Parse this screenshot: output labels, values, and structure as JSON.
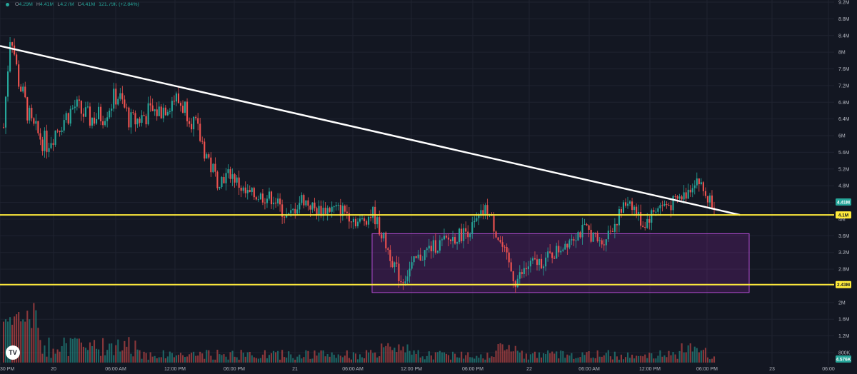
{
  "legend": {
    "open_label": "O",
    "open": "4.29M",
    "high_label": "H",
    "high": "4.41M",
    "low_label": "L",
    "low": "4.27M",
    "close_label": "C",
    "close": "4.41M",
    "change": "121.79K (+2.84%)"
  },
  "colors": {
    "background": "#131722",
    "up": "#26a69a",
    "down": "#ef5350",
    "trendline": "#ffffff",
    "level": "#ffeb3b",
    "zone": "#9c27b0",
    "grid": "#1f2330",
    "axis_text": "#b2b5be"
  },
  "logo_icon": "tradingview-logo-icon",
  "logo_text": "TV",
  "chart_data": {
    "type": "candlestick",
    "y_axis": {
      "ticks": [
        "9.2M",
        "8.8M",
        "8.4M",
        "8M",
        "7.6M",
        "7.2M",
        "6.8M",
        "6.4M",
        "6M",
        "5.6M",
        "5.2M",
        "4.8M",
        "4.4M",
        "4M",
        "3.6M",
        "3.2M",
        "2.8M",
        "2.4M",
        "2M",
        "1.6M",
        "1.2M",
        "800K"
      ],
      "tick_values": [
        9.2,
        8.8,
        8.4,
        8.0,
        7.6,
        7.2,
        6.8,
        6.4,
        6.0,
        5.6,
        5.2,
        4.8,
        4.4,
        4.0,
        3.6,
        3.2,
        2.8,
        2.4,
        2.0,
        1.6,
        1.2,
        0.8
      ],
      "range": [
        0.8,
        9.2
      ]
    },
    "x_axis": {
      "labels": [
        "30 PM",
        "20",
        "06:00 AM",
        "12:00 PM",
        "06:00 PM",
        "21",
        "06:00 AM",
        "12:00 PM",
        "06:00 PM",
        "22",
        "06:00 AM",
        "12:00 PM",
        "06:00 PM",
        "23",
        "06:00"
      ]
    },
    "price_tags": [
      {
        "label": "4.41M",
        "value": 4.41,
        "kind": "last"
      },
      {
        "label": "4.1M",
        "value": 4.1,
        "kind": "level"
      },
      {
        "label": "2.43M",
        "value": 2.43,
        "kind": "level"
      },
      {
        "label": "4.576K",
        "value": 0,
        "kind": "volume"
      }
    ],
    "horizontal_levels": [
      4.1,
      2.43
    ],
    "zone": {
      "from_label": "21 09:00 AM",
      "to_label": "23 00:00 AM",
      "top": 3.65,
      "bottom": 2.24
    },
    "trendline": {
      "start": {
        "t": 0,
        "price": 8.15
      },
      "end": {
        "t": 1.0,
        "price": 4.1
      }
    },
    "series_anchor_closes": [
      [
        0.0,
        6.2
      ],
      [
        0.01,
        8.6
      ],
      [
        0.02,
        7.4
      ],
      [
        0.04,
        6.2
      ],
      [
        0.06,
        5.8
      ],
      [
        0.08,
        6.3
      ],
      [
        0.1,
        6.7
      ],
      [
        0.12,
        6.4
      ],
      [
        0.14,
        6.5
      ],
      [
        0.16,
        7.0
      ],
      [
        0.18,
        6.3
      ],
      [
        0.2,
        6.5
      ],
      [
        0.22,
        6.6
      ],
      [
        0.24,
        6.9
      ],
      [
        0.26,
        6.6
      ],
      [
        0.28,
        5.8
      ],
      [
        0.3,
        4.9
      ],
      [
        0.32,
        5.1
      ],
      [
        0.34,
        4.6
      ],
      [
        0.36,
        4.55
      ],
      [
        0.38,
        4.5
      ],
      [
        0.4,
        4.0
      ],
      [
        0.42,
        4.5
      ],
      [
        0.44,
        4.2
      ],
      [
        0.46,
        4.25
      ],
      [
        0.48,
        4.2
      ],
      [
        0.5,
        3.9
      ],
      [
        0.52,
        4.15
      ],
      [
        0.54,
        3.3
      ],
      [
        0.56,
        2.5
      ],
      [
        0.58,
        3.0
      ],
      [
        0.6,
        3.3
      ],
      [
        0.62,
        3.45
      ],
      [
        0.64,
        3.6
      ],
      [
        0.66,
        3.8
      ],
      [
        0.68,
        4.25
      ],
      [
        0.7,
        3.4
      ],
      [
        0.72,
        2.5
      ],
      [
        0.74,
        2.9
      ],
      [
        0.76,
        3.0
      ],
      [
        0.78,
        3.25
      ],
      [
        0.8,
        3.6
      ],
      [
        0.82,
        3.75
      ],
      [
        0.84,
        3.4
      ],
      [
        0.86,
        3.9
      ],
      [
        0.88,
        4.5
      ],
      [
        0.9,
        3.85
      ],
      [
        0.92,
        4.3
      ],
      [
        0.94,
        4.35
      ],
      [
        0.96,
        4.6
      ],
      [
        0.975,
        5.0
      ],
      [
        0.99,
        4.5
      ],
      [
        1.0,
        4.41
      ]
    ]
  }
}
